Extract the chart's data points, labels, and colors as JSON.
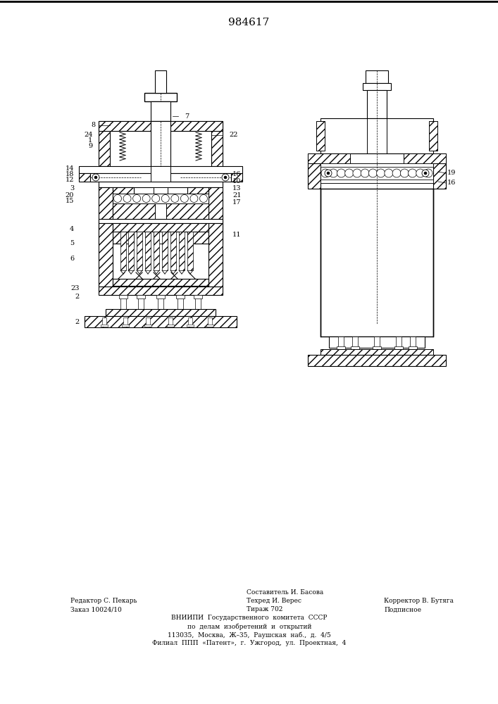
{
  "patent_number": "984617",
  "footer_left_col": [
    "Редактор С. Пекарь",
    "Заказ 10024/10"
  ],
  "footer_mid_top": "Составитель И. Басова",
  "footer_mid_col": [
    "Техред И. Верес",
    "Тираж 702"
  ],
  "footer_right_col": [
    "Корректор В. Бутяга",
    "Подписное"
  ],
  "footer_bottom": [
    "ВНИИПИ  Государственного  комитета  СССР",
    "по  делам  изобретений  и  открытий",
    "113035,  Москва,  Ж–35,  Раушская  наб.,  д.  4/5",
    "Филиал  ППП  «Патент»,  г.  Ужгород,  ул.  Проектная,  4"
  ],
  "bg_color": "#ffffff",
  "line_color": "#000000",
  "fig_width": 7.07,
  "fig_height": 10.0
}
